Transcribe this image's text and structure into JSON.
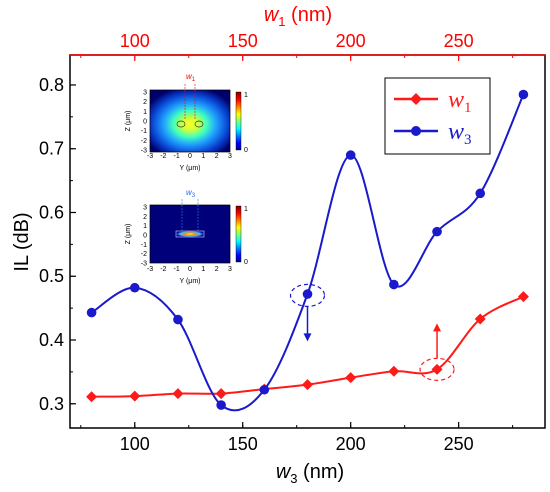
{
  "chart_data": {
    "type": "line",
    "bottom_axis": {
      "label_var": "w",
      "label_sub": "3",
      "label_unit": " (nm)",
      "ticks": [
        100,
        150,
        200,
        250
      ],
      "range": [
        70,
        290
      ],
      "color": "#000000"
    },
    "top_axis": {
      "label_var": "w",
      "label_sub": "1",
      "label_unit": " (nm)",
      "ticks": [
        100,
        150,
        200,
        250
      ],
      "range": [
        70,
        290
      ],
      "color": "#ff0000"
    },
    "y_axis": {
      "label": "IL (dB)",
      "ticks": [
        "0.3",
        "0.4",
        "0.5",
        "0.6",
        "0.7",
        "0.8"
      ],
      "tick_values": [
        0.3,
        0.4,
        0.5,
        0.6,
        0.7,
        0.8
      ],
      "range": [
        0.262,
        0.847
      ]
    },
    "grid": false,
    "legend": {
      "placement": "top-right",
      "entries": [
        {
          "var": "w",
          "sub": "1",
          "color": "#ff1a1a",
          "marker": "diamond"
        },
        {
          "var": "w",
          "sub": "3",
          "color": "#1a1acc",
          "marker": "circle"
        }
      ]
    },
    "series": [
      {
        "name": "w1",
        "color": "#ff1a1a",
        "marker": "diamond",
        "x": [
          80,
          100,
          120,
          140,
          160,
          180,
          200,
          220,
          240,
          260,
          280
        ],
        "y": [
          0.311,
          0.312,
          0.316,
          0.316,
          0.323,
          0.33,
          0.341,
          0.351,
          0.354,
          0.433,
          0.468
        ]
      },
      {
        "name": "w3",
        "color": "#1a1acc",
        "marker": "circle",
        "x": [
          80,
          100,
          120,
          140,
          160,
          180,
          200,
          220,
          240,
          260,
          280
        ],
        "y": [
          0.443,
          0.482,
          0.432,
          0.298,
          0.322,
          0.472,
          0.69,
          0.487,
          0.57,
          0.63,
          0.785
        ]
      }
    ],
    "annotations": [
      {
        "x": 180,
        "y": 0.47,
        "series": "w3",
        "arrow": "down"
      },
      {
        "x": 240,
        "y": 0.354,
        "series": "w1",
        "arrow": "up"
      }
    ],
    "insets": [
      {
        "label_var": "w",
        "label_sub": "1",
        "xlabel": "Y (μm)",
        "ylabel": "Z (μm)",
        "xticks": [
          "-3",
          "-2",
          "-1",
          "0",
          "1",
          "2",
          "3"
        ],
        "yticks": [
          "3",
          "2",
          "1",
          "0",
          "-1",
          "-2",
          "-3"
        ],
        "colorbar_ticks": [
          "1",
          "0"
        ]
      },
      {
        "label_var": "w",
        "label_sub": "3",
        "xlabel": "Y (μm)",
        "ylabel": "Z (μm)",
        "xticks": [
          "-3",
          "-2",
          "-1",
          "0",
          "1",
          "2",
          "3"
        ],
        "yticks": [
          "3",
          "2",
          "1",
          "0",
          "-1",
          "-2",
          "-3"
        ],
        "colorbar_ticks": [
          "1",
          "0"
        ]
      }
    ]
  }
}
